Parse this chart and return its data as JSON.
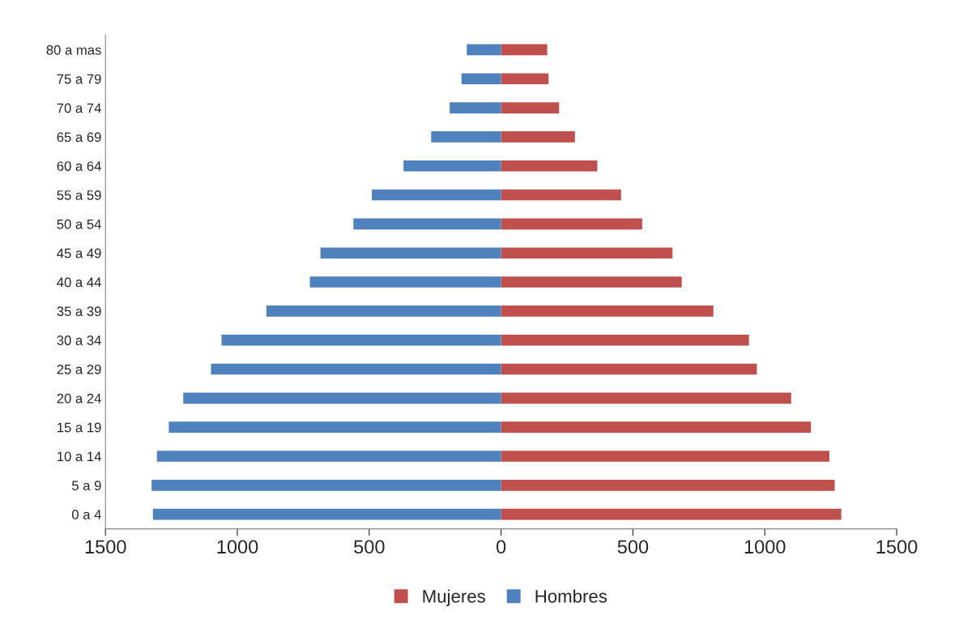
{
  "chart_data": {
    "type": "bar",
    "orientation": "horizontal",
    "categories": [
      "80 a mas",
      "75 a 79",
      "70 a 74",
      "65 a 69",
      "60 a 64",
      "55 a 59",
      "50 a 54",
      "45 a 49",
      "40 a 44",
      "35 a 39",
      "30 a 34",
      "25 a 29",
      "20 a 24",
      "15 a 19",
      "10 a 14",
      "5 a 9",
      "0 a 4"
    ],
    "series": [
      {
        "name": "Mujeres",
        "color": "#c0504d",
        "values": [
          175,
          180,
          220,
          280,
          365,
          455,
          535,
          650,
          685,
          805,
          940,
          970,
          1100,
          1175,
          1245,
          1265,
          1290
        ]
      },
      {
        "name": "Hombres",
        "color": "#4f81bd",
        "values": [
          -130,
          -150,
          -195,
          -265,
          -370,
          -490,
          -560,
          -685,
          -725,
          -890,
          -1060,
          -1100,
          -1205,
          -1260,
          -1305,
          -1325,
          -1320
        ]
      }
    ],
    "xlim": [
      -1500,
      1500
    ],
    "xticks": [
      {
        "value": -1500,
        "label": "1500"
      },
      {
        "value": -1000,
        "label": "1000"
      },
      {
        "value": -500,
        "label": "500"
      },
      0,
      500,
      1000,
      1500
    ],
    "stacked": true,
    "grid": false,
    "legend": "bottom"
  }
}
